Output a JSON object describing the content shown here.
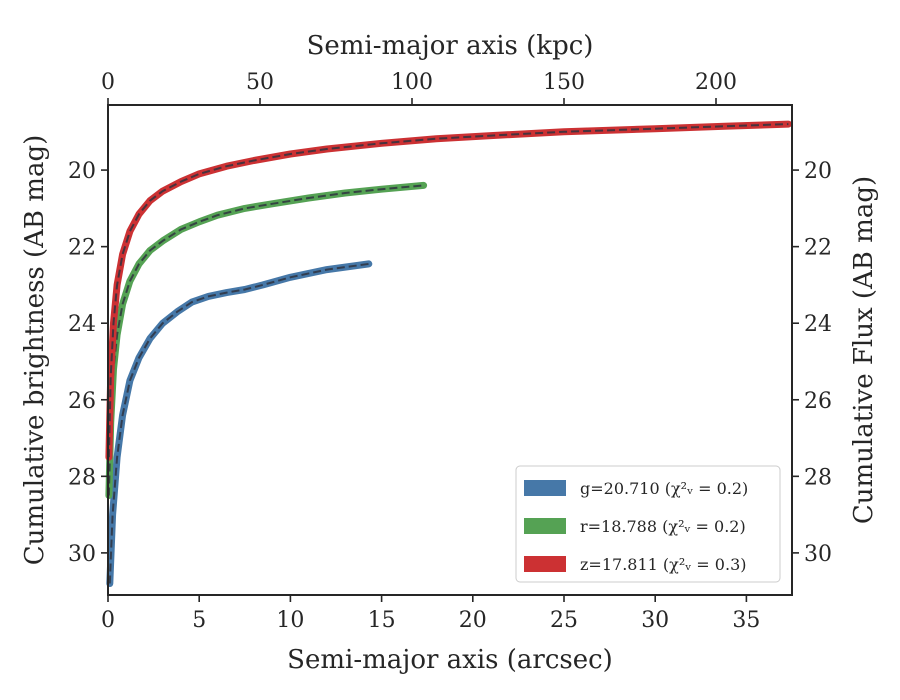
{
  "chart_data": {
    "type": "line",
    "xlabel": "Semi-major axis (arcsec)",
    "ylabel_left": "Cumulative brightness (AB mag)",
    "ylabel_right": "Cumulative Flux (AB mag)",
    "xlabel_top": "Semi-major axis (kpc)",
    "xlim": [
      0,
      37.5
    ],
    "ylim": [
      31.1,
      18.3
    ],
    "y_inverted": true,
    "x_ticks": [
      0,
      5,
      10,
      15,
      20,
      25,
      30,
      35
    ],
    "y_ticks": [
      20,
      22,
      24,
      26,
      28,
      30
    ],
    "x_top_ticks": [
      0,
      50,
      100,
      150,
      200
    ],
    "x_top_kpc_per_arcsec": 6.0,
    "grid": false,
    "legend_position": "lower-right",
    "series": [
      {
        "name": "g=20.710",
        "legend_suffix": "(χ²ᵥ = 0.2)",
        "color": "#4678a8",
        "x": [
          0.1,
          0.25,
          0.5,
          0.8,
          1.2,
          1.7,
          2.3,
          3,
          3.8,
          4.6,
          5.5,
          6.5,
          7.5,
          8.5,
          10,
          12,
          14.3
        ],
        "y": [
          30.8,
          29.0,
          27.5,
          26.4,
          25.5,
          24.9,
          24.4,
          24.0,
          23.7,
          23.45,
          23.3,
          23.2,
          23.12,
          23.0,
          22.8,
          22.6,
          22.45
        ]
      },
      {
        "name": "r=18.788",
        "legend_suffix": "(χ²ᵥ = 0.2)",
        "color": "#55a254",
        "x": [
          0.05,
          0.15,
          0.3,
          0.5,
          0.8,
          1.2,
          1.7,
          2.3,
          3,
          4,
          5,
          6,
          7.5,
          9,
          11,
          13,
          15,
          17.3
        ],
        "y": [
          28.5,
          26.6,
          25.2,
          24.3,
          23.5,
          22.9,
          22.45,
          22.1,
          21.85,
          21.55,
          21.35,
          21.18,
          21.0,
          20.88,
          20.73,
          20.6,
          20.5,
          20.4
        ]
      },
      {
        "name": "z=17.811",
        "legend_suffix": "(χ²ᵥ = 0.3)",
        "color": "#cc3133",
        "x": [
          0.05,
          0.15,
          0.3,
          0.5,
          0.8,
          1.2,
          1.7,
          2.3,
          3,
          4,
          5,
          6.5,
          8,
          10,
          12,
          15,
          18,
          21,
          25,
          30,
          34,
          37.3
        ],
        "y": [
          27.5,
          25.4,
          24.0,
          23.0,
          22.2,
          21.6,
          21.15,
          20.8,
          20.55,
          20.3,
          20.1,
          19.9,
          19.75,
          19.58,
          19.45,
          19.3,
          19.18,
          19.1,
          19.0,
          18.92,
          18.85,
          18.8
        ]
      }
    ]
  }
}
